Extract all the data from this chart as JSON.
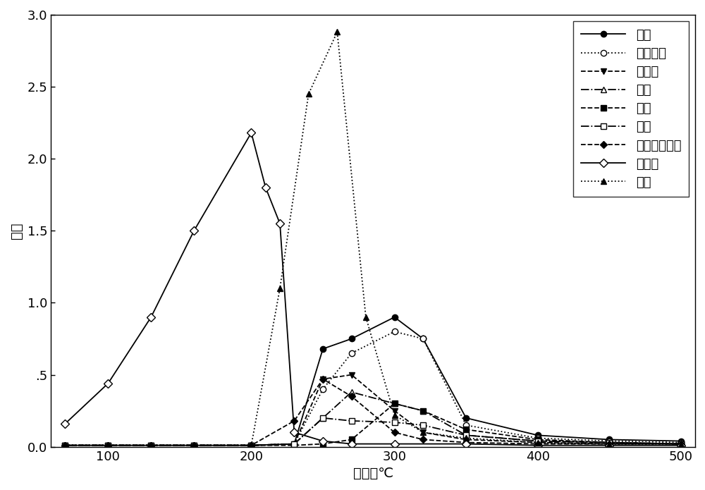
{
  "title": "",
  "xlabel": "温度，℃",
  "ylabel": "比值",
  "xlim": [
    60,
    510
  ],
  "ylim": [
    0.0,
    3.0
  ],
  "xticks": [
    100,
    200,
    300,
    400,
    500
  ],
  "yticks": [
    0.0,
    0.5,
    1.0,
    1.5,
    2.0,
    2.5,
    3.0
  ],
  "ytick_labels": [
    "0.0",
    ".5",
    "1.0",
    "1.5",
    "2.0",
    "2.5",
    "3.0"
  ],
  "series": [
    {
      "name": "乙酸",
      "linestyle": "-",
      "marker": "o",
      "markerfacecolor": "black",
      "markersize": 6,
      "x": [
        70,
        100,
        130,
        160,
        200,
        230,
        250,
        270,
        300,
        320,
        350,
        400,
        450,
        500
      ],
      "y": [
        0.01,
        0.01,
        0.01,
        0.01,
        0.01,
        0.02,
        0.68,
        0.75,
        0.9,
        0.75,
        0.2,
        0.08,
        0.05,
        0.04
      ]
    },
    {
      "name": "羟基丙酮",
      "linestyle": ":",
      "marker": "o",
      "markerfacecolor": "white",
      "markersize": 6,
      "x": [
        70,
        100,
        130,
        160,
        200,
        230,
        250,
        270,
        300,
        320,
        350,
        400,
        450,
        500
      ],
      "y": [
        0.01,
        0.01,
        0.01,
        0.01,
        0.01,
        0.02,
        0.4,
        0.65,
        0.8,
        0.75,
        0.15,
        0.06,
        0.04,
        0.03
      ]
    },
    {
      "name": "丙二醇",
      "linestyle": "--",
      "marker": "v",
      "markerfacecolor": "black",
      "markersize": 6,
      "x": [
        70,
        100,
        130,
        160,
        200,
        230,
        250,
        270,
        300,
        320,
        350,
        400,
        450,
        500
      ],
      "y": [
        0.01,
        0.01,
        0.01,
        0.01,
        0.01,
        0.02,
        0.47,
        0.5,
        0.25,
        0.1,
        0.05,
        0.03,
        0.02,
        0.02
      ]
    },
    {
      "name": "糠醇",
      "linestyle": "-.",
      "marker": "^",
      "markerfacecolor": "white",
      "markersize": 6,
      "x": [
        70,
        100,
        130,
        160,
        200,
        230,
        250,
        270,
        300,
        320,
        350,
        400,
        450,
        500
      ],
      "y": [
        0.01,
        0.01,
        0.01,
        0.01,
        0.01,
        0.02,
        0.2,
        0.38,
        0.3,
        0.25,
        0.08,
        0.04,
        0.03,
        0.02
      ]
    },
    {
      "name": "苯酚",
      "linestyle": "--",
      "marker": "s",
      "markerfacecolor": "black",
      "markersize": 6,
      "x": [
        70,
        100,
        130,
        160,
        200,
        230,
        250,
        270,
        300,
        320,
        350,
        400,
        450,
        500
      ],
      "y": [
        0.01,
        0.01,
        0.01,
        0.01,
        0.01,
        0.01,
        0.02,
        0.05,
        0.3,
        0.25,
        0.12,
        0.05,
        0.03,
        0.02
      ]
    },
    {
      "name": "甘油",
      "linestyle": "-.",
      "marker": "s",
      "markerfacecolor": "white",
      "markersize": 6,
      "x": [
        70,
        100,
        130,
        160,
        200,
        230,
        250,
        270,
        300,
        320,
        350,
        400,
        450,
        500
      ],
      "y": [
        0.01,
        0.01,
        0.01,
        0.01,
        0.01,
        0.02,
        0.2,
        0.18,
        0.17,
        0.15,
        0.08,
        0.04,
        0.03,
        0.02
      ]
    },
    {
      "name": "甘油单乙酸酯",
      "linestyle": "--",
      "marker": "D",
      "markerfacecolor": "black",
      "markersize": 5,
      "x": [
        70,
        100,
        130,
        160,
        200,
        230,
        250,
        270,
        300,
        320,
        350,
        400,
        450,
        500
      ],
      "y": [
        0.01,
        0.01,
        0.01,
        0.01,
        0.01,
        0.18,
        0.47,
        0.35,
        0.1,
        0.05,
        0.03,
        0.02,
        0.02,
        0.02
      ]
    },
    {
      "name": "薄荷醇",
      "linestyle": "-",
      "marker": "D",
      "markerfacecolor": "white",
      "markersize": 6,
      "x": [
        70,
        100,
        130,
        160,
        200,
        210,
        220,
        230,
        250,
        270,
        300,
        350,
        400,
        450,
        500
      ],
      "y": [
        0.16,
        0.44,
        0.9,
        1.5,
        2.18,
        1.8,
        1.55,
        0.1,
        0.04,
        0.02,
        0.02,
        0.02,
        0.01,
        0.01,
        0.01
      ]
    },
    {
      "name": "烟碱",
      "linestyle": ":",
      "marker": "^",
      "markerfacecolor": "black",
      "markersize": 6,
      "x": [
        70,
        100,
        130,
        160,
        200,
        220,
        240,
        260,
        280,
        300,
        320,
        350,
        400,
        450,
        500
      ],
      "y": [
        0.01,
        0.01,
        0.01,
        0.01,
        0.01,
        1.1,
        2.45,
        2.88,
        0.9,
        0.22,
        0.1,
        0.06,
        0.03,
        0.02,
        0.02
      ]
    }
  ],
  "legend_loc": "upper right",
  "font_size": 13,
  "tick_fontsize": 13,
  "label_fontsize": 14,
  "background_color": "#ffffff"
}
